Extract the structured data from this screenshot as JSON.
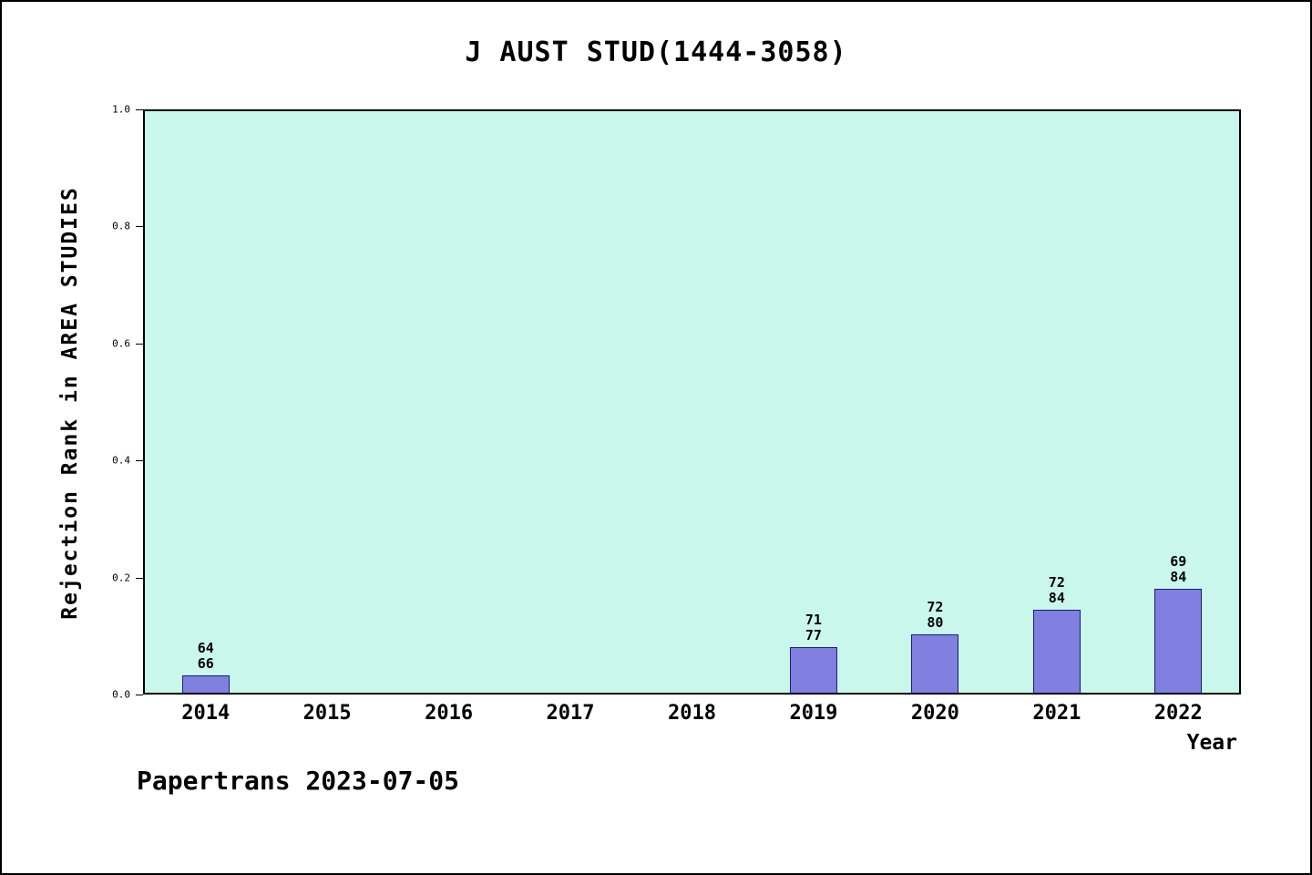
{
  "title": "J AUST STUD(1444-3058)",
  "footer": "Papertrans 2023-07-05",
  "colors": {
    "plot_bg": "#c9f7ec",
    "bar_fill": "#8080e0",
    "bar_edge": "#1b1b7a"
  },
  "chart_data": {
    "type": "bar",
    "title": "J AUST STUD(1444-3058)",
    "xlabel": "Year",
    "ylabel": "Rejection Rank in AREA STUDIES",
    "categories": [
      "2014",
      "2015",
      "2016",
      "2017",
      "2018",
      "2019",
      "2020",
      "2021",
      "2022"
    ],
    "values": [
      0.03,
      0,
      0,
      0,
      0,
      0.078,
      0.1,
      0.143,
      0.179
    ],
    "bar_labels": [
      [
        "64",
        "66"
      ],
      null,
      null,
      null,
      null,
      [
        "71",
        "77"
      ],
      [
        "72",
        "80"
      ],
      [
        "72",
        "84"
      ],
      [
        "69",
        "84"
      ]
    ],
    "ylim": [
      0,
      1
    ],
    "yticks": [
      "1.0",
      "0.8",
      "0.6",
      "0.4",
      "0.2",
      "0.0"
    ],
    "grid": false,
    "legend": false
  }
}
